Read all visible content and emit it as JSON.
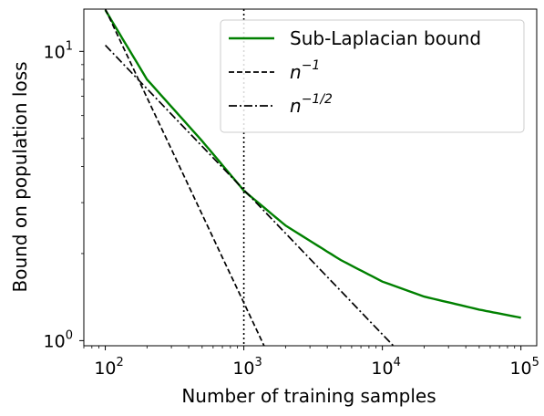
{
  "chart_data": {
    "type": "line",
    "x_scale": "log",
    "y_scale": "log",
    "xlim": [
      70,
      130000
    ],
    "ylim": [
      0.96,
      14.0
    ],
    "xlabel": "Number of training samples",
    "ylabel": "Bound on population loss",
    "x_ticks": [
      {
        "value": 100,
        "base": "10",
        "exp": "2"
      },
      {
        "value": 1000,
        "base": "10",
        "exp": "3"
      },
      {
        "value": 10000,
        "base": "10",
        "exp": "4"
      },
      {
        "value": 100000,
        "base": "10",
        "exp": "5"
      }
    ],
    "y_ticks": [
      {
        "value": 1,
        "base": "10",
        "exp": "0"
      },
      {
        "value": 10,
        "base": "10",
        "exp": "1"
      }
    ],
    "vertical_line": {
      "x": 1000,
      "style": "dotted",
      "color": "#000000"
    },
    "legend": {
      "placement": "top-right"
    },
    "series": [
      {
        "name": "Sub-Laplacian bound",
        "legend_base": "Sub-Laplacian bound",
        "legend_exp": "",
        "style": "solid",
        "color": "#008000",
        "x": [
          100,
          200,
          500,
          1000,
          2000,
          5000,
          10000,
          20000,
          50000,
          100000
        ],
        "y": [
          13.9,
          8.0,
          4.9,
          3.3,
          2.5,
          1.9,
          1.6,
          1.42,
          1.28,
          1.2
        ]
      },
      {
        "name": "n^-1",
        "legend_base": "n",
        "legend_exp": "−1",
        "style": "dashed",
        "color": "#000000",
        "x": [
          100,
          1400
        ],
        "y": [
          14.0,
          0.96
        ]
      },
      {
        "name": "n^-1/2",
        "legend_base": "n",
        "legend_exp": "−1/2",
        "style": "dashdot",
        "color": "#000000",
        "x": [
          100,
          12000
        ],
        "y": [
          10.5,
          0.96
        ]
      }
    ]
  }
}
